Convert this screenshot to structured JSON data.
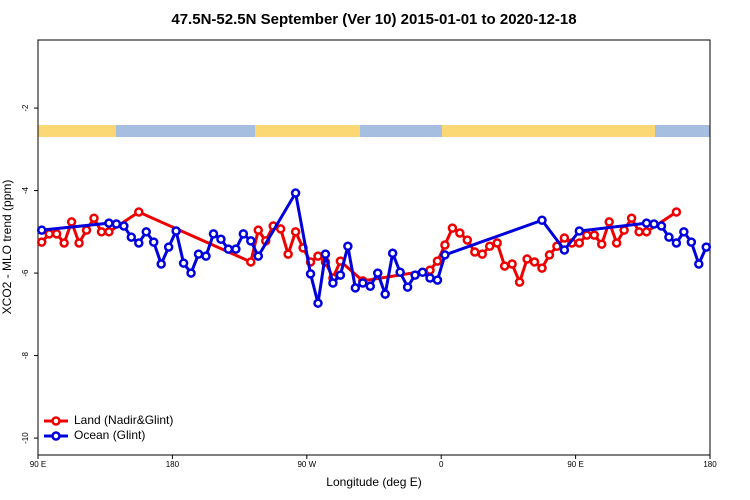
{
  "chart_data": {
    "type": "line",
    "title": "47.5N-52.5N September (Ver 10)   2015-01-01 to 2020-12-18",
    "x_label": "Longitude (deg E)",
    "y_label": "XCO2 - MLO trend (ppm)",
    "xlim": [
      90,
      540
    ],
    "xticks": [
      {
        "value": 90,
        "label": "90 E"
      },
      180,
      {
        "value": 270,
        "label": "90 W"
      },
      {
        "value": 360,
        "label": "0"
      },
      {
        "value": 450,
        "label": "90 E"
      },
      {
        "value": 540,
        "label": "180"
      }
    ],
    "ylim": [
      -10.41,
      -0.35
    ],
    "yticks": [
      -2,
      -4,
      -6,
      -8,
      -10
    ],
    "legend": "bottom-left",
    "series": [
      {
        "name": "Land (Nadir&Glint)",
        "color": "#ee0000",
        "x": [
          92.5,
          97.5,
          102.5,
          107.5,
          112.5,
          117.5,
          122.5,
          127.5,
          132.5,
          137.5,
          157.5,
          232.5,
          237.5,
          242.5,
          247.5,
          252.5,
          257.5,
          262.5,
          267.5,
          272.5,
          277.5,
          282.5,
          287.5,
          292.5,
          307.5,
          352.5,
          357.5,
          362.5,
          367.5,
          372.5,
          377.5,
          382.5,
          387.5,
          392.5,
          397.5,
          402.5,
          407.5,
          412.5,
          417.5,
          422.5,
          427.5,
          432.5,
          437.5,
          442.5,
          447.5,
          452.5,
          457.5,
          462.5,
          467.5,
          472.5,
          477.5,
          482.5,
          487.5,
          492.5,
          497.5,
          517.5
        ],
        "values": [
          -5.25,
          -5.05,
          -5.05,
          -5.27,
          -4.76,
          -5.27,
          -4.96,
          -4.67,
          -5.0,
          -5.0,
          -4.52,
          -5.73,
          -4.96,
          -5.22,
          -4.86,
          -4.93,
          -5.54,
          -5.0,
          -5.39,
          -5.73,
          -5.59,
          -5.73,
          -6.12,
          -5.71,
          -6.19,
          -5.93,
          -5.71,
          -5.32,
          -4.91,
          -5.03,
          -5.2,
          -5.49,
          -5.54,
          -5.35,
          -5.27,
          -5.83,
          -5.78,
          -6.22,
          -5.66,
          -5.73,
          -5.88,
          -5.56,
          -5.35,
          -5.15,
          -5.27,
          -5.27,
          -5.08,
          -5.08,
          -5.3,
          -4.76,
          -5.27,
          -4.96,
          -4.67,
          -5.0,
          -5.0,
          -4.52
        ]
      },
      {
        "name": "Ocean (Glint)",
        "color": "#0000dd",
        "x": [
          92.5,
          137.5,
          142.5,
          147.5,
          152.5,
          157.5,
          162.5,
          167.5,
          172.5,
          177.5,
          182.5,
          187.5,
          192.5,
          197.5,
          202.5,
          207.5,
          212.5,
          217.5,
          222.5,
          227.5,
          232.5,
          237.5,
          262.5,
          272.5,
          277.5,
          282.5,
          287.5,
          292.5,
          297.5,
          302.5,
          307.5,
          312.5,
          317.5,
          322.5,
          327.5,
          332.5,
          337.5,
          342.5,
          347.5,
          352.5,
          357.5,
          362.5,
          427.5,
          442.5,
          452.5,
          497.5,
          502.5,
          507.5,
          512.5,
          517.5,
          522.5,
          527.5,
          532.5,
          537.5
        ],
        "values": [
          -4.96,
          -4.79,
          -4.81,
          -4.86,
          -5.13,
          -5.27,
          -5.0,
          -5.25,
          -5.78,
          -5.37,
          -4.98,
          -5.76,
          -6.0,
          -5.54,
          -5.59,
          -5.05,
          -5.18,
          -5.42,
          -5.42,
          -5.05,
          -5.22,
          -5.59,
          -4.06,
          -6.02,
          -6.73,
          -5.54,
          -6.24,
          -6.05,
          -5.35,
          -6.36,
          -6.24,
          -6.32,
          -6.0,
          -6.51,
          -5.52,
          -5.98,
          -6.34,
          -6.05,
          -5.98,
          -6.12,
          -6.17,
          -5.56,
          -4.72,
          -5.44,
          -4.98,
          -4.79,
          -4.81,
          -4.86,
          -5.13,
          -5.27,
          -5.0,
          -5.25,
          -5.78,
          -5.37
        ]
      }
    ]
  }
}
